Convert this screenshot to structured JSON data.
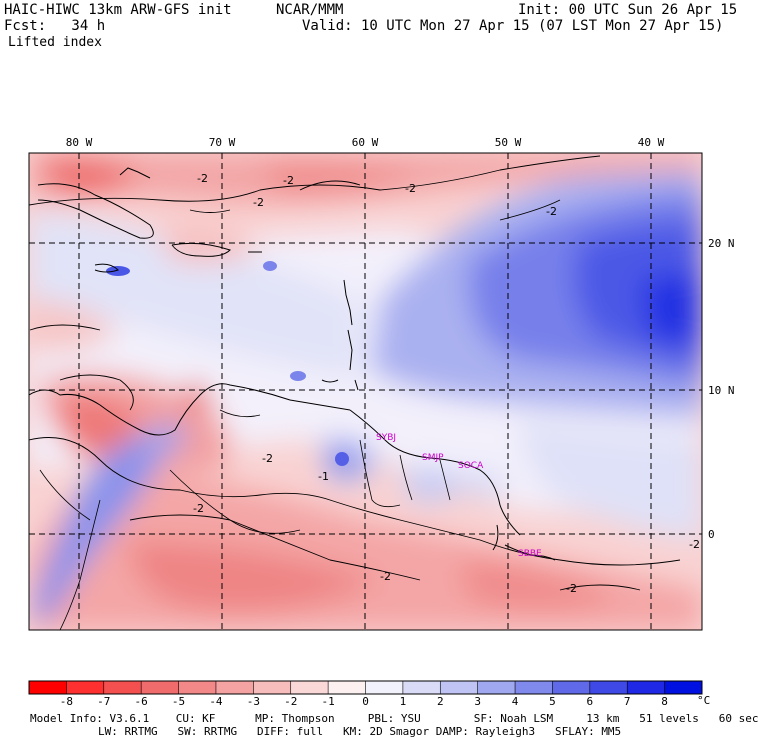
{
  "header": {
    "model": "HAIC-HIWC 13km ARW-GFS init",
    "org": "NCAR/MMM",
    "init": "Init: 00 UTC Sun 26 Apr 15",
    "fcst": "Fcst:   34 h",
    "valid": "Valid: 10 UTC Mon 27 Apr 15 (07 LST Mon 27 Apr 15)",
    "field": "Lifted index"
  },
  "map": {
    "lon_labels": [
      "80 W",
      "70 W",
      "60 W",
      "50 W",
      "40 W"
    ],
    "lat_labels": [
      "20 N",
      "10 N",
      "0"
    ],
    "contour_labels": [
      "-2",
      "-1"
    ],
    "stations": [
      "SYBJ",
      "SMJP",
      "SOCA",
      "SBBE"
    ]
  },
  "colorbar": {
    "ticks": [
      "-8",
      "-7",
      "-6",
      "-5",
      "-4",
      "-3",
      "-2",
      "-1",
      "0",
      "1",
      "2",
      "3",
      "4",
      "5",
      "6",
      "7",
      "8"
    ],
    "unit": "°C",
    "colors": [
      "#ff0000",
      "#ff3030",
      "#f55050",
      "#f06c6c",
      "#f28888",
      "#f4a2a2",
      "#f7bdbd",
      "#fad8d8",
      "#fdf0f0",
      "#f2f2fd",
      "#dadcf7",
      "#bfc4f4",
      "#a0a8f0",
      "#8089ec",
      "#606ae8",
      "#3f4ae6",
      "#1f28e4",
      "#0010e0"
    ]
  },
  "footer": {
    "line1": "Model Info: V3.6.1    CU: KF      MP: Thompson     PBL: YSU        SF: Noah LSM     13 km   51 levels   60 sec",
    "line2": "LW: RRTMG   SW: RRTMG   DIFF: full   KM: 2D Smagor DAMP: Rayleigh3   SFLAY: MM5"
  }
}
